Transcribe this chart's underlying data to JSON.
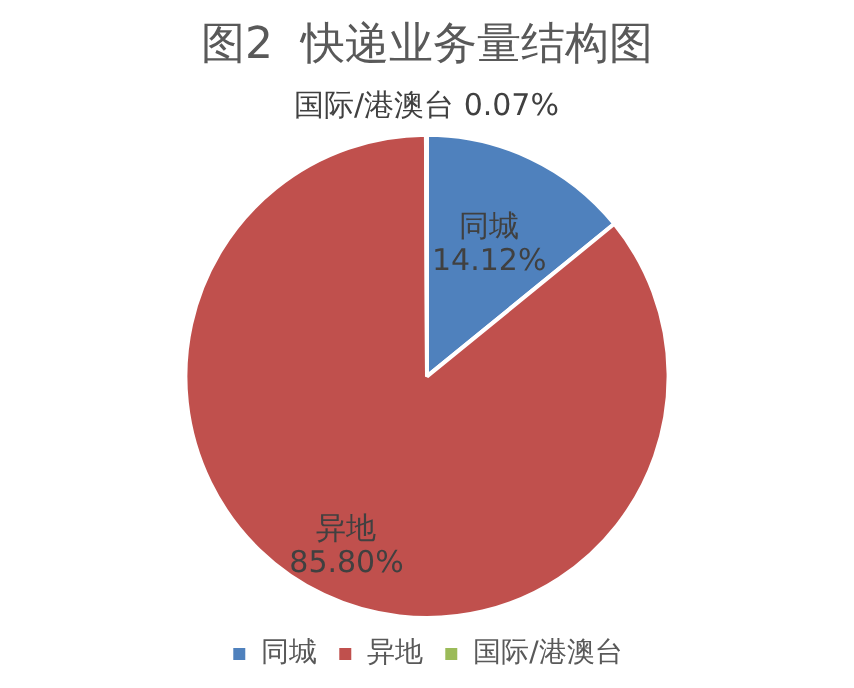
{
  "chart_data": {
    "type": "pie",
    "title": "图2  快递业务量结构图",
    "categories": [
      "同城",
      "异地",
      "国际/港澳台"
    ],
    "values": [
      14.12,
      85.8,
      0.07
    ],
    "colors": [
      "#4f81bd",
      "#c0504d",
      "#9bbb59"
    ],
    "value_labels": [
      "14.12%",
      "85.80%",
      "0.07%"
    ],
    "legend": "bottom"
  }
}
